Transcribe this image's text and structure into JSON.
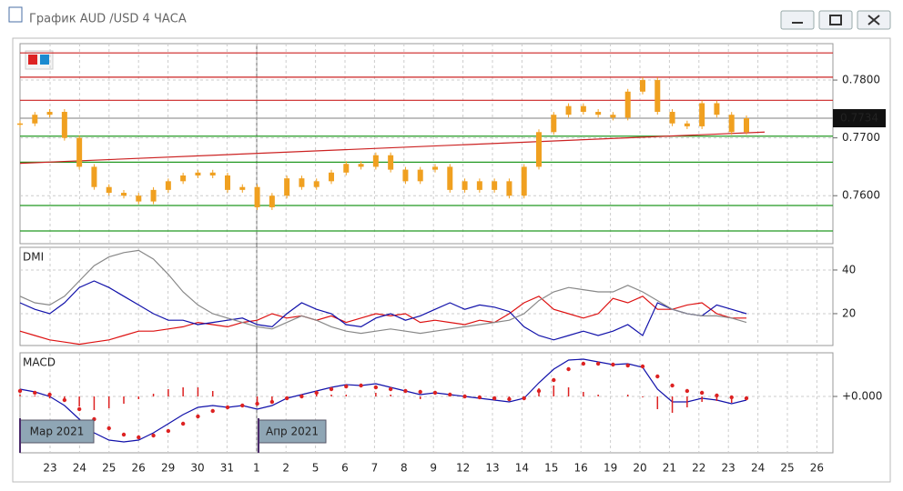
{
  "window": {
    "title": "График AUD /USD  4 ЧАСА"
  },
  "x_axis": {
    "labels": [
      "23",
      "24",
      "25",
      "26",
      "29",
      "30",
      "31",
      "1",
      "2",
      "5",
      "6",
      "7",
      "8",
      "9",
      "12",
      "13",
      "14",
      "15",
      "16",
      "19",
      "20",
      "21",
      "22",
      "23",
      "24",
      "25",
      "26"
    ],
    "month_labels": [
      "Мар 2021",
      "Апр 2021"
    ]
  },
  "chart_data": [
    {
      "type": "candlestick",
      "color": "#f0a020",
      "values": [
        0.7725,
        0.774,
        0.7745,
        0.77,
        0.765,
        0.7615,
        0.7605,
        0.76,
        0.759,
        0.761,
        0.7625,
        0.7635,
        0.764,
        0.7635,
        0.761,
        0.7615,
        0.758,
        0.76,
        0.763,
        0.7615,
        0.7625,
        0.764,
        0.7655,
        0.765,
        0.767,
        0.7645,
        0.7625,
        0.7645,
        0.765,
        0.761,
        0.7625,
        0.761,
        0.7625,
        0.76,
        0.765,
        0.771,
        0.774,
        0.7755,
        0.7745,
        0.774,
        0.7735,
        0.778,
        0.78,
        0.7745,
        0.7725,
        0.772,
        0.776,
        0.774,
        0.771,
        0.7734
      ],
      "ylim": [
        0.7517,
        0.7863
      ],
      "yticks": [
        {
          "value": 0.76,
          "label": "0.7600"
        },
        {
          "value": 0.77,
          "label": "0.7700"
        },
        {
          "value": 0.78,
          "label": "0.7800"
        }
      ],
      "price_label": {
        "value": 0.7734,
        "label": "0.7734"
      },
      "levels": [
        {
          "value": 0.7847,
          "color": "#cc2222"
        },
        {
          "value": 0.7805,
          "color": "#cc2222"
        },
        {
          "value": 0.7765,
          "color": "#cc2222"
        },
        {
          "value": 0.7734,
          "color": "#999999"
        },
        {
          "value": 0.7703,
          "color": "#229922"
        },
        {
          "value": 0.7658,
          "color": "#229922"
        },
        {
          "value": 0.7583,
          "color": "#229922"
        },
        {
          "value": 0.7539,
          "color": "#229922"
        }
      ],
      "trendline": {
        "color": "#cc2222",
        "values": [
          0.7656,
          0.771
        ]
      }
    },
    {
      "type": "line",
      "title": "DMI",
      "ylim": [
        5.4,
        50.4
      ],
      "yticks": [
        20,
        40
      ],
      "series": [
        {
          "color": "#dd1111",
          "values": [
            12,
            10,
            8,
            7,
            6,
            7,
            8,
            10,
            12,
            12,
            13,
            14,
            16,
            15,
            14,
            16,
            17,
            20,
            18,
            19,
            17,
            19,
            16,
            18,
            20,
            19,
            20,
            16,
            17,
            16,
            15,
            17,
            16,
            20,
            25,
            28,
            22,
            20,
            18,
            20,
            27,
            25,
            28,
            22,
            22,
            24,
            25,
            20,
            18,
            18
          ]
        },
        {
          "color": "#1111aa",
          "values": [
            25,
            22,
            20,
            25,
            32,
            35,
            32,
            28,
            24,
            20,
            17,
            17,
            15,
            16,
            17,
            18,
            15,
            14,
            20,
            25,
            22,
            20,
            15,
            14,
            18,
            20,
            17,
            19,
            22,
            25,
            22,
            24,
            23,
            21,
            14,
            10,
            8,
            10,
            12,
            10,
            12,
            15,
            10,
            25,
            22,
            20,
            19,
            24,
            22,
            20
          ]
        },
        {
          "color": "#888888",
          "values": [
            28,
            25,
            24,
            28,
            35,
            42,
            46,
            48,
            49,
            45,
            38,
            30,
            24,
            20,
            18,
            16,
            14,
            13,
            16,
            19,
            17,
            14,
            12,
            11,
            12,
            13,
            12,
            11,
            12,
            13,
            14,
            15,
            16,
            17,
            20,
            26,
            30,
            32,
            31,
            30,
            30,
            33,
            30,
            26,
            22,
            20,
            19,
            19,
            18,
            16
          ]
        }
      ]
    },
    {
      "type": "macd",
      "title": "MACD",
      "ylim": [
        -0.0062,
        0.0048
      ],
      "yticks": [
        {
          "value": 0,
          "label": "+0.000"
        }
      ],
      "series": [
        {
          "color": "#1111aa",
          "values": [
            0.0008,
            0.0005,
            0.0,
            -0.001,
            -0.0025,
            -0.004,
            -0.0048,
            -0.005,
            -0.0048,
            -0.004,
            -0.003,
            -0.002,
            -0.0012,
            -0.001,
            -0.0012,
            -0.001,
            -0.0014,
            -0.001,
            -0.0002,
            0.0002,
            0.0006,
            0.001,
            0.0013,
            0.0012,
            0.0014,
            0.001,
            0.0006,
            0.0002,
            0.0004,
            0.0002,
            0.0,
            -0.0002,
            -0.0004,
            -0.0006,
            -0.0002,
            0.0015,
            0.003,
            0.004,
            0.0041,
            0.0038,
            0.0035,
            0.0036,
            0.0032,
            0.0008,
            -0.0006,
            -0.0006,
            -0.0002,
            -0.0004,
            -0.0008,
            -0.0004
          ]
        },
        {
          "color": "#dd2222",
          "values": [
            0.0006,
            0.0004,
            0.0002,
            -0.0004,
            -0.0014,
            -0.0025,
            -0.0035,
            -0.0042,
            -0.0045,
            -0.0043,
            -0.0038,
            -0.003,
            -0.0022,
            -0.0016,
            -0.0012,
            -0.001,
            -0.0008,
            -0.0006,
            -0.0002,
            0.0,
            0.0004,
            0.0008,
            0.0011,
            0.0012,
            0.001,
            0.0008,
            0.0006,
            0.0005,
            0.0004,
            0.0002,
            0.0,
            -0.0001,
            -0.0002,
            -0.0003,
            -0.0002,
            0.0006,
            0.0018,
            0.003,
            0.0036,
            0.0036,
            0.0035,
            0.0034,
            0.0033,
            0.0022,
            0.0012,
            0.0006,
            0.0004,
            0.0001,
            -0.0001,
            -0.0002
          ]
        },
        {
          "color": "#dd2222",
          "values": [
            0.0002,
            0.0001,
            -0.0002,
            -0.0006,
            -0.0011,
            -0.0015,
            -0.0013,
            -0.0008,
            -0.0003,
            0.0003,
            0.0008,
            0.001,
            0.001,
            0.0006,
            0.0,
            0.0,
            -0.0006,
            -0.0004,
            0.0,
            0.0002,
            0.0002,
            0.0002,
            0.0002,
            0.0,
            0.0004,
            0.0002,
            0.0,
            -0.0003,
            0.0,
            0.0,
            0.0,
            -0.0001,
            -0.0002,
            -0.0003,
            0.0,
            0.0009,
            0.0012,
            0.001,
            0.0005,
            0.0002,
            0.0,
            0.0002,
            -0.0001,
            -0.0014,
            -0.0018,
            -0.0012,
            -0.0006,
            -0.0005,
            -0.0007,
            -0.0002
          ]
        }
      ]
    }
  ]
}
